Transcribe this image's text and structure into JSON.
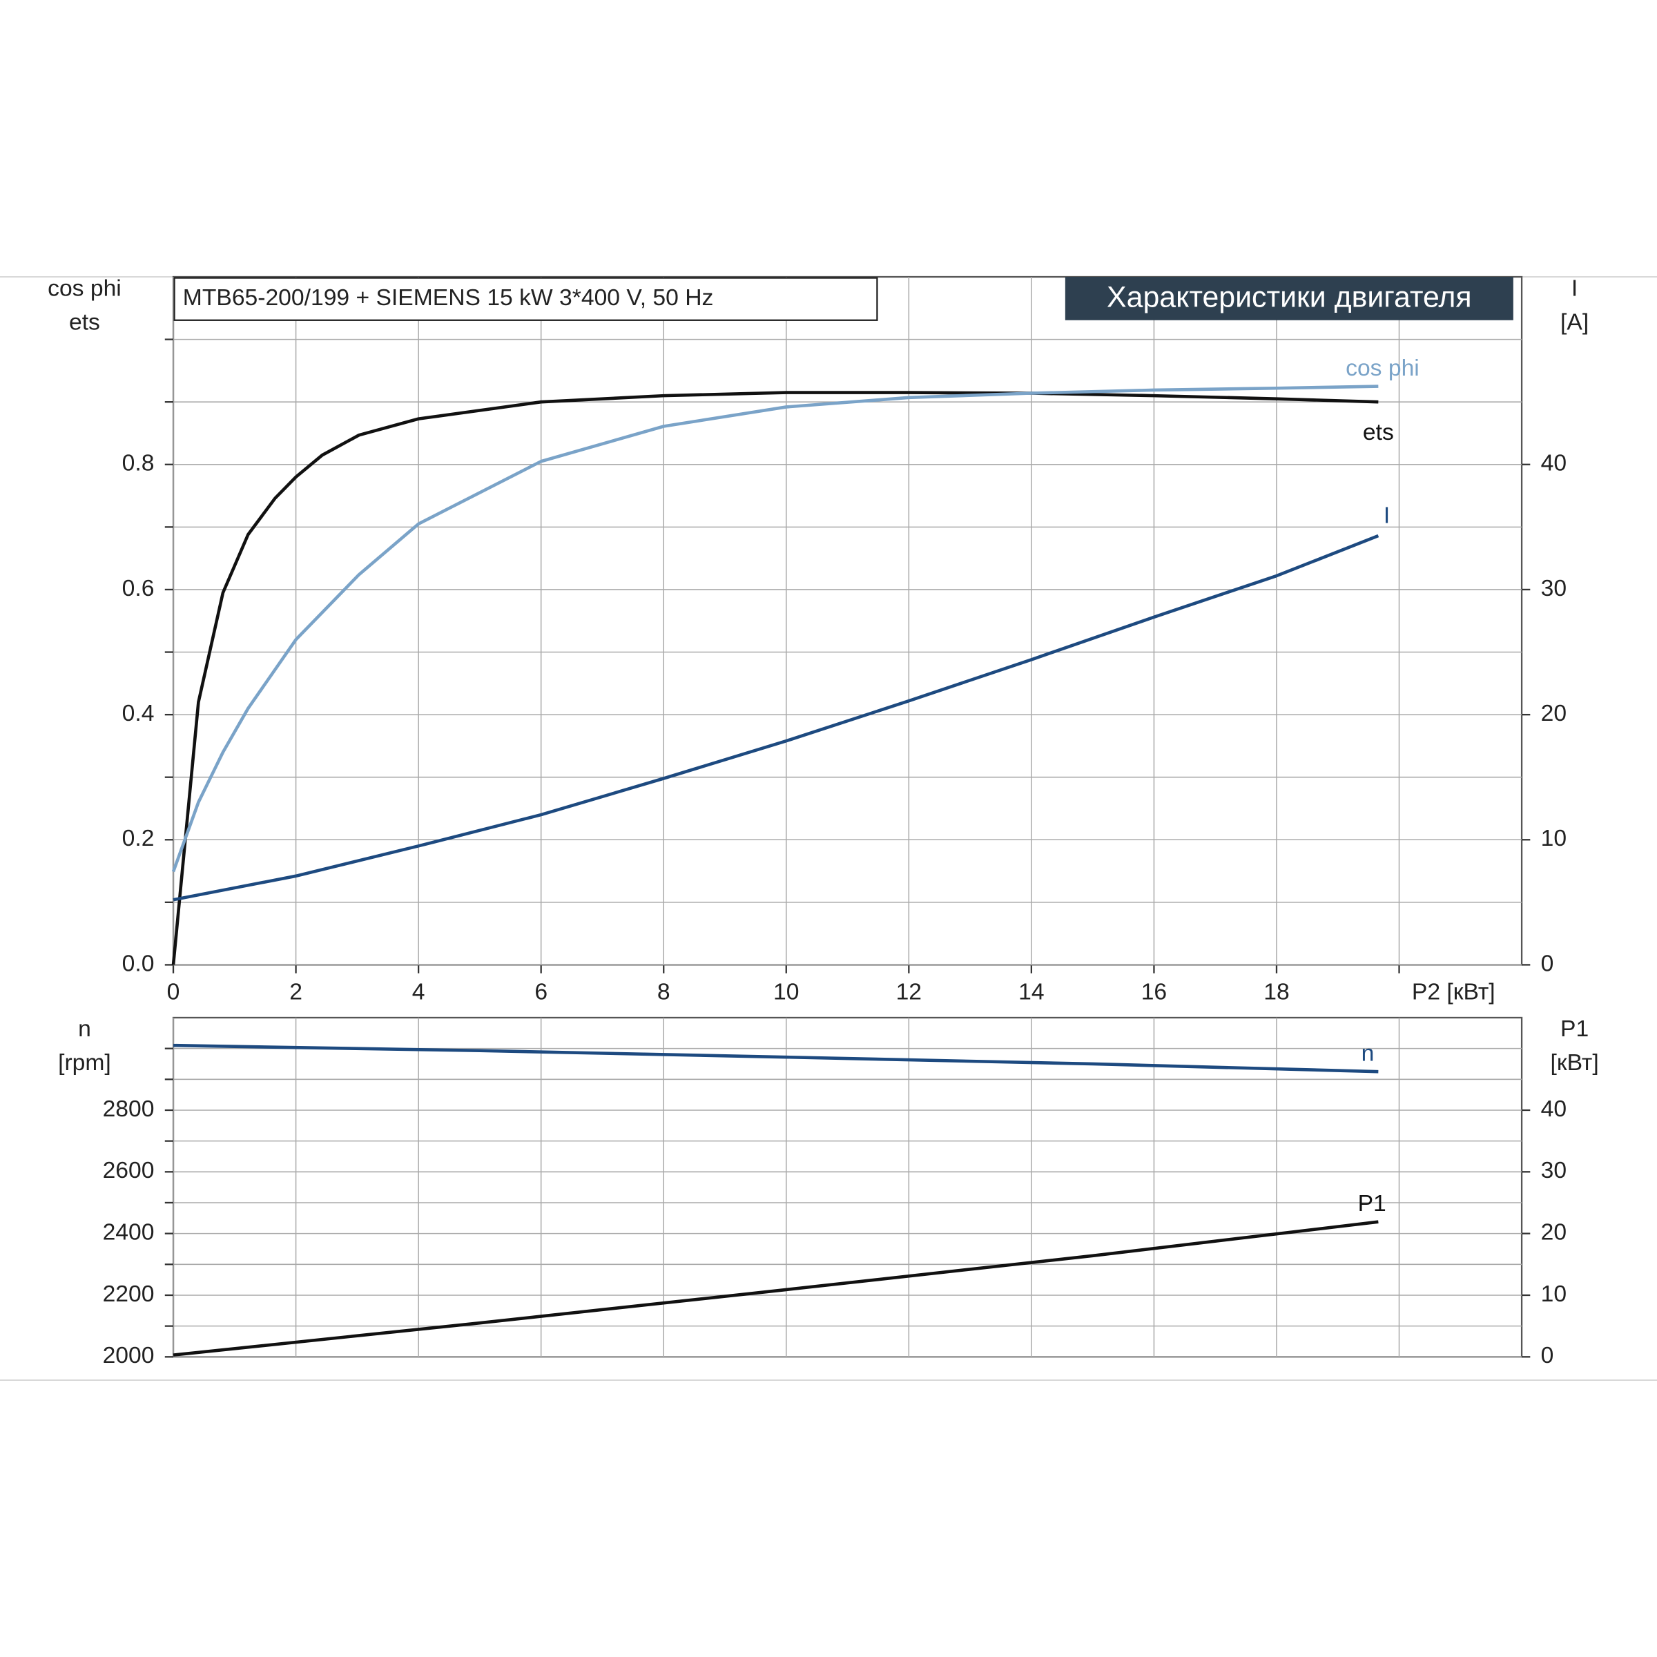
{
  "chart_data": [
    {
      "type": "line",
      "title": "MTB65-200/199 + SIEMENS   15 kW   3*400 V, 50 Hz",
      "subtitle": "Характеристики двигателя",
      "ylabel": [
        "cos phi",
        "ets"
      ],
      "y2label": [
        "I",
        "[A]"
      ],
      "xlim": [
        0,
        22
      ],
      "xticks": [
        0,
        2,
        4,
        6,
        8,
        10,
        12,
        14,
        16,
        18,
        {
          "value": 20,
          "label": "P2 [кВт]"
        }
      ],
      "xtick_labels": true,
      "ylim": [
        0,
        1.1
      ],
      "yticks": [
        {
          "value": 0,
          "label": "0.0"
        },
        0.2,
        0.4,
        0.6,
        0.8
      ],
      "y_minor_ticks": [
        0.1,
        0.3,
        0.5,
        0.7,
        0.9,
        1.0
      ],
      "y2lim": [
        0,
        55
      ],
      "y2ticks": [
        0,
        10,
        20,
        30,
        40
      ],
      "grid": true,
      "series": [
        {
          "name": "ets",
          "color": "#111111",
          "x": [
            0,
            0.41,
            0.81,
            1.22,
            1.66,
            2,
            2.43,
            3.03,
            4,
            6,
            8,
            10,
            12,
            14,
            16,
            18,
            19.66
          ],
          "values": [
            0,
            0.42,
            0.595,
            0.688,
            0.746,
            0.78,
            0.815,
            0.847,
            0.873,
            0.9,
            0.91,
            0.915,
            0.915,
            0.914,
            0.91,
            0.905,
            0.9
          ]
        },
        {
          "name": "cos phi",
          "color": "#7aa3c8",
          "x": [
            0,
            0.41,
            0.81,
            1.22,
            2,
            3.03,
            4,
            6,
            8,
            10,
            12,
            14,
            16,
            18,
            19.66
          ],
          "values": [
            0.149,
            0.26,
            0.34,
            0.41,
            0.52,
            0.624,
            0.705,
            0.805,
            0.861,
            0.892,
            0.907,
            0.914,
            0.919,
            0.922,
            0.925
          ]
        },
        {
          "name": "I",
          "color": "#1d4a80",
          "axis": "y2",
          "x": [
            0,
            2,
            4,
            6,
            8,
            10,
            12,
            14,
            16,
            18,
            19.66
          ],
          "values": [
            5.2,
            7.1,
            9.5,
            12.0,
            14.9,
            17.9,
            21.1,
            24.4,
            27.8,
            31.1,
            34.3
          ]
        }
      ]
    },
    {
      "type": "line",
      "ylabel": [
        "n",
        "[rpm]"
      ],
      "y2label": [
        "P1",
        "[кВт]"
      ],
      "xlim": [
        0,
        22
      ],
      "xticks": [
        0,
        2,
        4,
        6,
        8,
        10,
        12,
        14,
        16,
        18,
        20
      ],
      "xtick_labels": false,
      "ylim": [
        2000,
        3100
      ],
      "yticks": [
        2000,
        2200,
        2400,
        2600,
        2800
      ],
      "y_minor_ticks": [
        2100,
        2300,
        2500,
        2700,
        2900,
        3000
      ],
      "y2lim": [
        0,
        55
      ],
      "y2ticks": [
        0,
        10,
        20,
        30,
        40
      ],
      "grid": true,
      "series": [
        {
          "name": "n",
          "color": "#1d4a80",
          "x": [
            0,
            5,
            10,
            15,
            19.66
          ],
          "values": [
            3010,
            2993,
            2972,
            2950,
            2925
          ]
        },
        {
          "name": "P1",
          "color": "#111111",
          "axis": "y2",
          "x": [
            0,
            5,
            10,
            15,
            19.66
          ],
          "values": [
            0.3,
            5.5,
            10.9,
            16.4,
            21.9
          ]
        }
      ]
    }
  ]
}
